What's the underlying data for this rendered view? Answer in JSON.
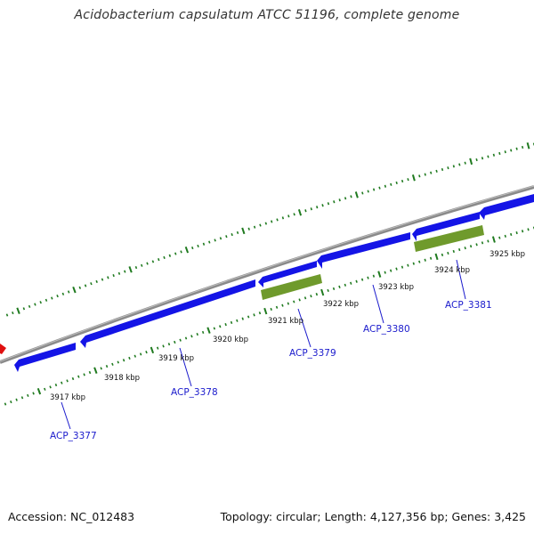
{
  "title": "Acidobacterium capsulatum ATCC 51196, complete genome",
  "footer": {
    "accession": "Accession: NC_012483",
    "summary": "Topology: circular; Length: 4,127,356 bp; Genes: 3,425"
  },
  "colors": {
    "backbone": "#8a8a8a",
    "cds_forward": "#1414e6",
    "cds_forward_dark": "#0a0a80",
    "gene_green": "#6f9a2c",
    "gene_green_dark": "#3d5a10",
    "other_feature": "#e01010",
    "tick": "#1f7a1f",
    "label": "#1a1acc"
  },
  "kbp_labels": [
    "3917 kbp",
    "3918 kbp",
    "3919 kbp",
    "3920 kbp",
    "3921 kbp",
    "3922 kbp",
    "3923 kbp",
    "3924 kbp",
    "3925 kbp"
  ],
  "gene_labels": [
    "ACP_3377",
    "ACP_3378",
    "ACP_3379",
    "ACP_3380",
    "ACP_3381"
  ]
}
